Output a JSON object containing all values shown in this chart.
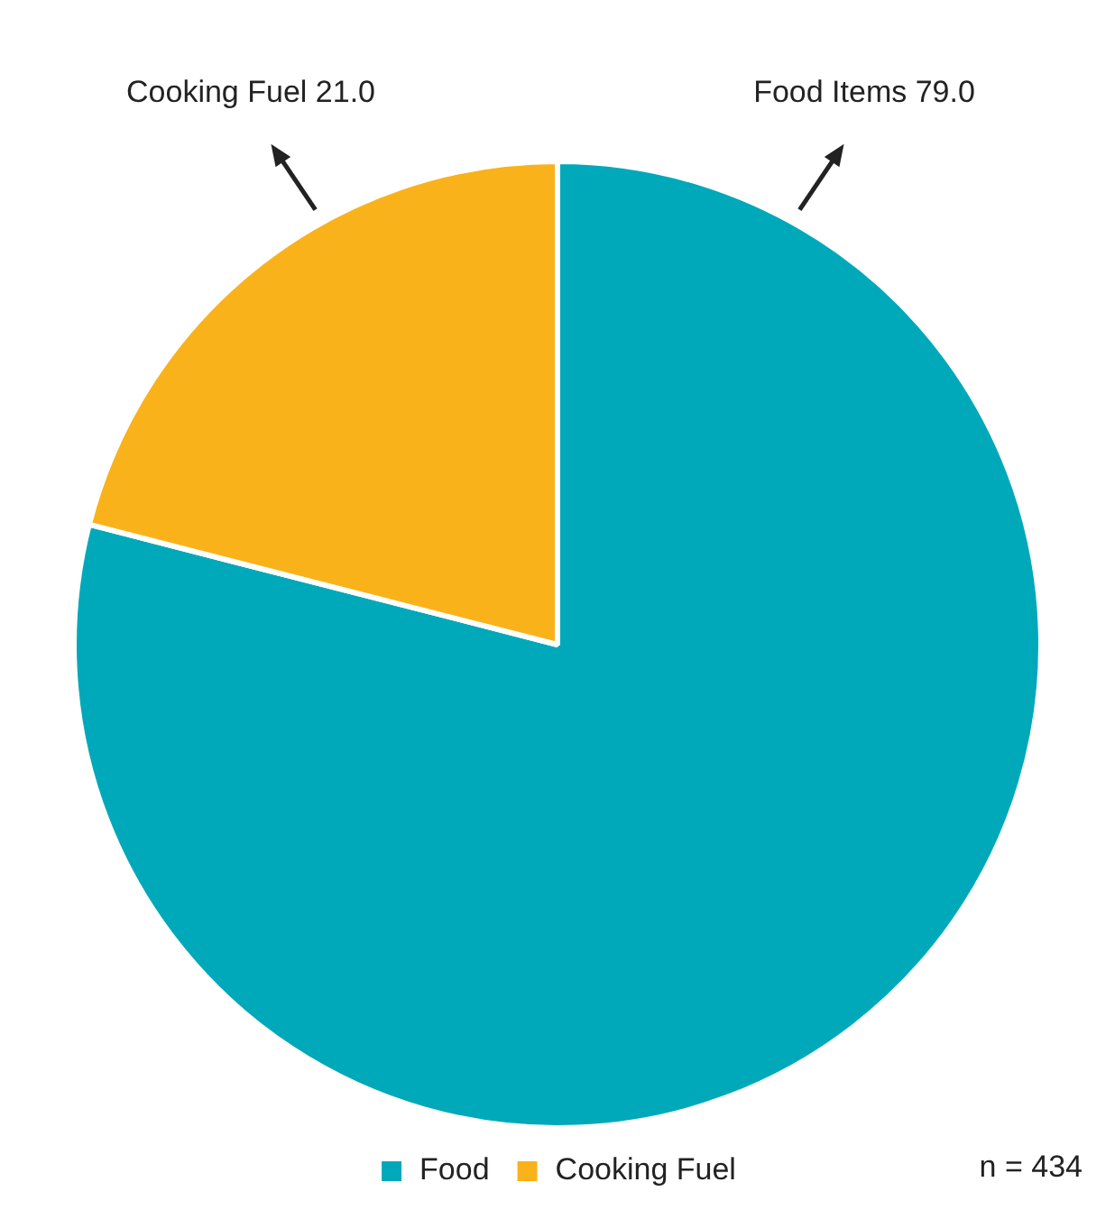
{
  "chart_data": {
    "type": "pie",
    "categories": [
      "Food",
      "Cooking Fuel"
    ],
    "values": [
      79.0,
      21.0
    ],
    "colors": [
      "#00a9b9",
      "#f9b21a"
    ],
    "value_labels": [
      "Food Items 79.0",
      "Cooking Fuel 21.0"
    ],
    "legend": "bottom",
    "annotations": [
      "n = 434"
    ]
  }
}
